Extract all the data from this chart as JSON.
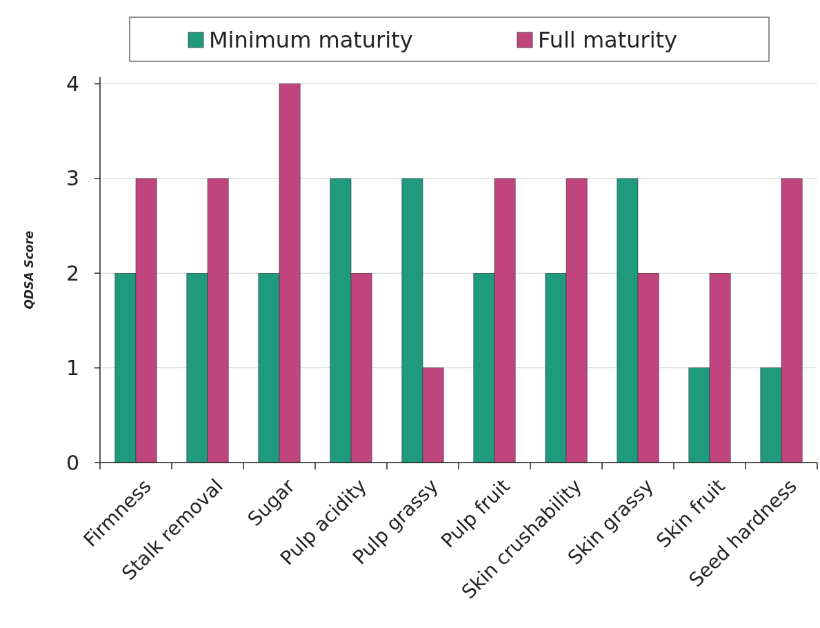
{
  "chart_data": {
    "type": "bar",
    "ylabel": "QDSA Score",
    "categories": [
      "Firmness",
      "Stalk removal",
      "Sugar",
      "Pulp acidity",
      "Pulp grassy",
      "Pulp fruit",
      "Skin crushability",
      "Skin grassy",
      "Skin fruit",
      "Seed hardness"
    ],
    "series": [
      {
        "name": "Minimum maturity",
        "color": "#1f9a7e",
        "values": [
          2,
          2,
          2,
          3,
          3,
          2,
          2,
          3,
          1,
          1
        ]
      },
      {
        "name": "Full maturity",
        "color": "#c0457f",
        "values": [
          3,
          3,
          4,
          2,
          1,
          3,
          3,
          2,
          2,
          3
        ]
      }
    ],
    "ylim": [
      0,
      4.07
    ],
    "yticks": [
      0,
      1,
      2,
      3,
      4
    ],
    "grid": "y",
    "legend": "top"
  }
}
